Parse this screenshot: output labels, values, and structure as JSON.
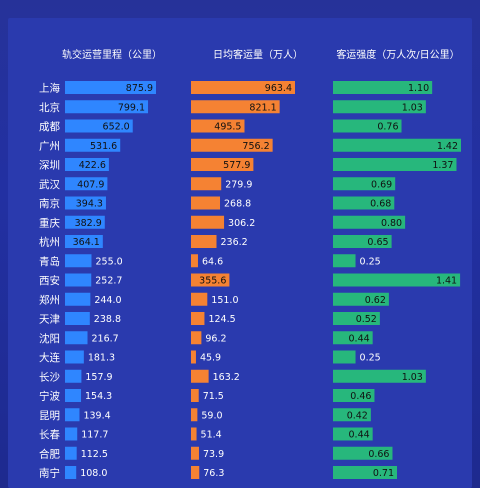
{
  "chart_data": {
    "type": "bar",
    "orientation": "horizontal",
    "categories": [
      "上海",
      "北京",
      "成都",
      "广州",
      "深圳",
      "武汉",
      "南京",
      "重庆",
      "杭州",
      "青岛",
      "西安",
      "郑州",
      "天津",
      "沈阳",
      "大连",
      "长沙",
      "宁波",
      "昆明",
      "长春",
      "合肥",
      "南宁"
    ],
    "series": [
      {
        "name": "轨交运营里程（公里）",
        "values": [
          875.9,
          799.1,
          652.0,
          531.6,
          422.6,
          407.9,
          394.3,
          382.9,
          364.1,
          255.0,
          252.7,
          244.0,
          238.8,
          216.7,
          181.3,
          157.9,
          154.3,
          139.4,
          117.7,
          112.5,
          108.0
        ],
        "labels": [
          "875.9",
          "799.1",
          "652.0",
          "531.6",
          "422.6",
          "407.9",
          "394.3",
          "382.9",
          "364.1",
          "255.0",
          "252.7",
          "244.0",
          "238.8",
          "216.7",
          "181.3",
          "157.9",
          "154.3",
          "139.4",
          "117.7",
          "112.5",
          "108.0"
        ],
        "color": "#2f86ff",
        "max": 875.9
      },
      {
        "name": "日均客运量（万人）",
        "values": [
          963.4,
          821.1,
          495.5,
          756.2,
          577.9,
          279.9,
          268.8,
          306.2,
          236.2,
          64.6,
          355.6,
          151.0,
          124.5,
          96.2,
          45.9,
          163.2,
          71.5,
          59.0,
          51.4,
          73.9,
          76.3
        ],
        "labels": [
          "963.4",
          "821.1",
          "495.5",
          "756.2",
          "577.9",
          "279.9",
          "268.8",
          "306.2",
          "236.2",
          "64.6",
          "355.6",
          "151.0",
          "124.5",
          "96.2",
          "45.9",
          "163.2",
          "71.5",
          "59.0",
          "51.4",
          "73.9",
          "76.3"
        ],
        "color": "#f58233",
        "max": 963.4
      },
      {
        "name": "客运强度（万人次/日公里）",
        "values": [
          1.1,
          1.03,
          0.76,
          1.42,
          1.37,
          0.69,
          0.68,
          0.8,
          0.65,
          0.25,
          1.41,
          0.62,
          0.52,
          0.44,
          0.25,
          1.03,
          0.46,
          0.42,
          0.44,
          0.66,
          0.71
        ],
        "labels": [
          "1.10",
          "1.03",
          "0.76",
          "1.42",
          "1.37",
          "0.69",
          "0.68",
          "0.80",
          "0.65",
          "0.25",
          "1.41",
          "0.62",
          "0.52",
          "0.44",
          "0.25",
          "1.03",
          "0.46",
          "0.42",
          "0.44",
          "0.66",
          "0.71"
        ],
        "color": "#27b77c",
        "max": 1.42
      }
    ]
  }
}
